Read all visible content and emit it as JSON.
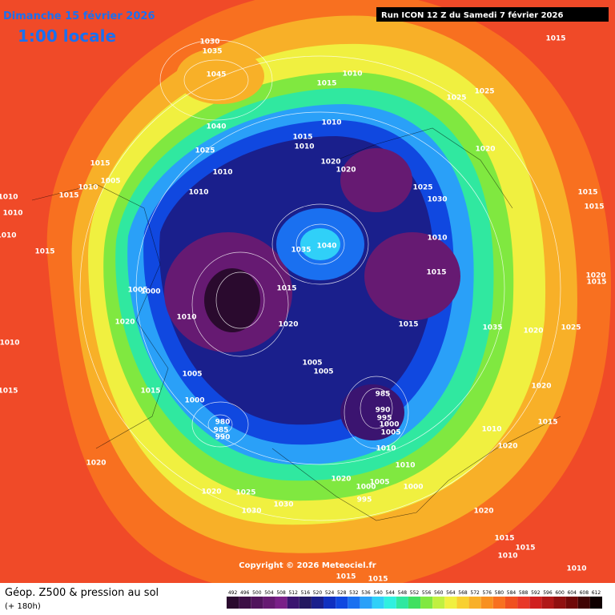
{
  "header": {
    "date": "Dimanche 15 février 2026",
    "time": "1:00 locale",
    "run": "Run ICON 12 Z du Samedi 7 février 2026"
  },
  "copyright": "Copyright © 2026 Meteociel.fr",
  "footer": {
    "title": "Géop. Z500 & pression au sol",
    "lead": "(+ 180h)"
  },
  "scale": {
    "values": [
      492,
      496,
      500,
      504,
      508,
      512,
      516,
      520,
      524,
      528,
      532,
      536,
      540,
      544,
      548,
      552,
      556,
      560,
      564,
      568,
      572,
      576,
      580,
      584,
      588,
      592,
      596,
      600,
      604,
      608,
      612
    ],
    "colors": [
      "#2a0a2e",
      "#3c0f45",
      "#51145c",
      "#661a72",
      "#7a2088",
      "#3b1470",
      "#231860",
      "#1a1f8c",
      "#1030c0",
      "#1048e0",
      "#1a70f0",
      "#2aa0f8",
      "#30d0f8",
      "#30f0e0",
      "#30e8a0",
      "#40e060",
      "#80e840",
      "#c0f040",
      "#f0f040",
      "#f8d030",
      "#f8b028",
      "#f89020",
      "#f87020",
      "#f05020",
      "#e83828",
      "#d02020",
      "#b01818",
      "#901010",
      "#700808",
      "#400404",
      "#100000"
    ]
  },
  "isobar_labels": [
    1030,
    1035,
    1045,
    1040,
    1025,
    1015,
    1010,
    1025,
    1025,
    1015,
    1015,
    1005,
    1010,
    1015,
    1010,
    1010,
    1010,
    1015,
    1010,
    1010,
    1015,
    1010,
    1020,
    1020,
    1010,
    1025,
    1030,
    1020,
    1015,
    1015,
    1040,
    1035,
    1015,
    1010,
    1000,
    1005,
    1020,
    1020,
    1005,
    1005,
    985,
    990,
    995,
    1000,
    1005,
    980,
    985,
    990,
    1010,
    1015,
    1015,
    1010,
    1035,
    1020,
    1020,
    1015,
    1010,
    1020,
    1020,
    1020,
    1025,
    1030,
    1030,
    1020,
    1000,
    995,
    1005,
    1000,
    1010,
    1020,
    1015,
    1010,
    1015,
    1010,
    1015,
    1015,
    1010,
    1015,
    1015,
    1005,
    1000,
    1015,
    1025,
    1020
  ]
}
